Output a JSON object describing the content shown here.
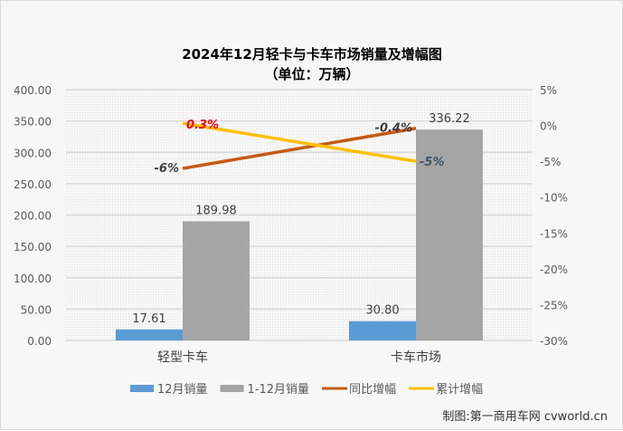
{
  "chart_data": {
    "type": "bar+line",
    "title": "2024年12月轻卡与卡车市场销量及增幅图",
    "subtitle": "（单位：万辆）",
    "categories": [
      "轻型卡车",
      "卡车市场"
    ],
    "y_left": {
      "range": [
        0,
        400
      ],
      "ticks": [
        "0.00",
        "50.00",
        "100.00",
        "150.00",
        "200.00",
        "250.00",
        "300.00",
        "350.00",
        "400.00"
      ]
    },
    "y_right": {
      "range": [
        -30,
        5
      ],
      "ticks": [
        "-30%",
        "-25%",
        "-20%",
        "-15%",
        "-10%",
        "-5%",
        "0%",
        "5%"
      ]
    },
    "grid": true,
    "legend_placement": "bottom",
    "series": [
      {
        "name": "12月销量",
        "kind": "bar",
        "axis": "left",
        "color": "#5b9bd5",
        "values": [
          17.61,
          30.8
        ],
        "labels": [
          "17.61",
          "30.80"
        ]
      },
      {
        "name": "1-12月销量",
        "kind": "bar",
        "axis": "left",
        "color": "#a5a5a5",
        "values": [
          189.98,
          336.22
        ],
        "labels": [
          "189.98",
          "336.22"
        ]
      },
      {
        "name": "同比增幅",
        "kind": "line",
        "axis": "right",
        "color": "#c55a11",
        "values": [
          -6,
          -0.4
        ],
        "labels": [
          "-6%",
          "-0.4%"
        ],
        "label_color": "#404040"
      },
      {
        "name": "累计增幅",
        "kind": "line",
        "axis": "right",
        "color": "#ffc000",
        "values": [
          0.3,
          -5
        ],
        "labels": [
          "0.3%",
          "-5%"
        ],
        "label_colors": [
          "#ff0000",
          "#44546a"
        ]
      }
    ]
  },
  "credit": "制图:第一商用车网 cvworld.cn"
}
